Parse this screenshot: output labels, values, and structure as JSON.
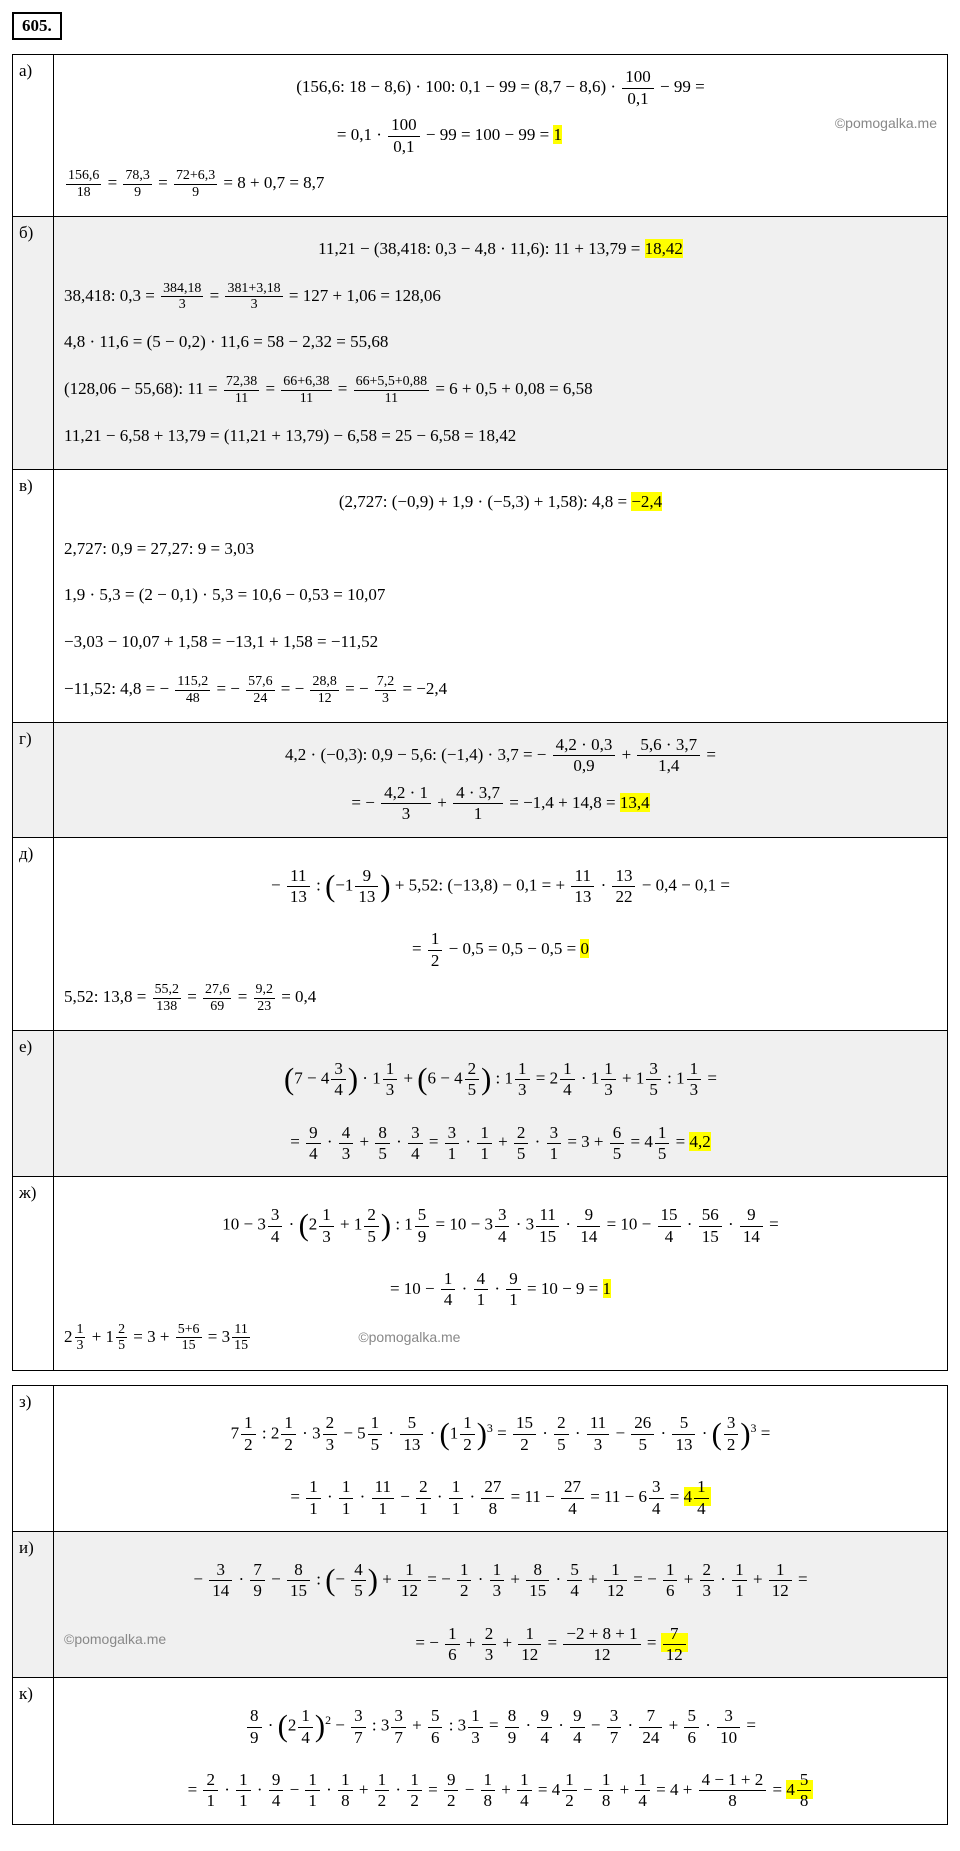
{
  "taskNumber": "605.",
  "watermark": "©pomogalka.me",
  "labels": {
    "a": "а)",
    "b": "б)",
    "v": "в)",
    "g": "г)",
    "d": "д)",
    "e": "е)",
    "zh": "ж)",
    "z": "з)",
    "i": "и)",
    "k": "к)"
  },
  "answers": {
    "a": "1",
    "b": "18,42",
    "v": "−2,4",
    "g": "13,4",
    "d": "0",
    "e": "4,2",
    "zh": "1",
    "z_int": "4",
    "z_n": "1",
    "z_d": "4",
    "i_n": "7",
    "i_d": "12",
    "k_int": "4",
    "k_n": "5",
    "k_d": "8"
  },
  "colors": {
    "highlight": "#ffff00",
    "border": "#000000",
    "shade": "#f0f0f0",
    "background": "#ffffff"
  },
  "fonts": {
    "body_size": 17,
    "family": "Cambria Math"
  }
}
